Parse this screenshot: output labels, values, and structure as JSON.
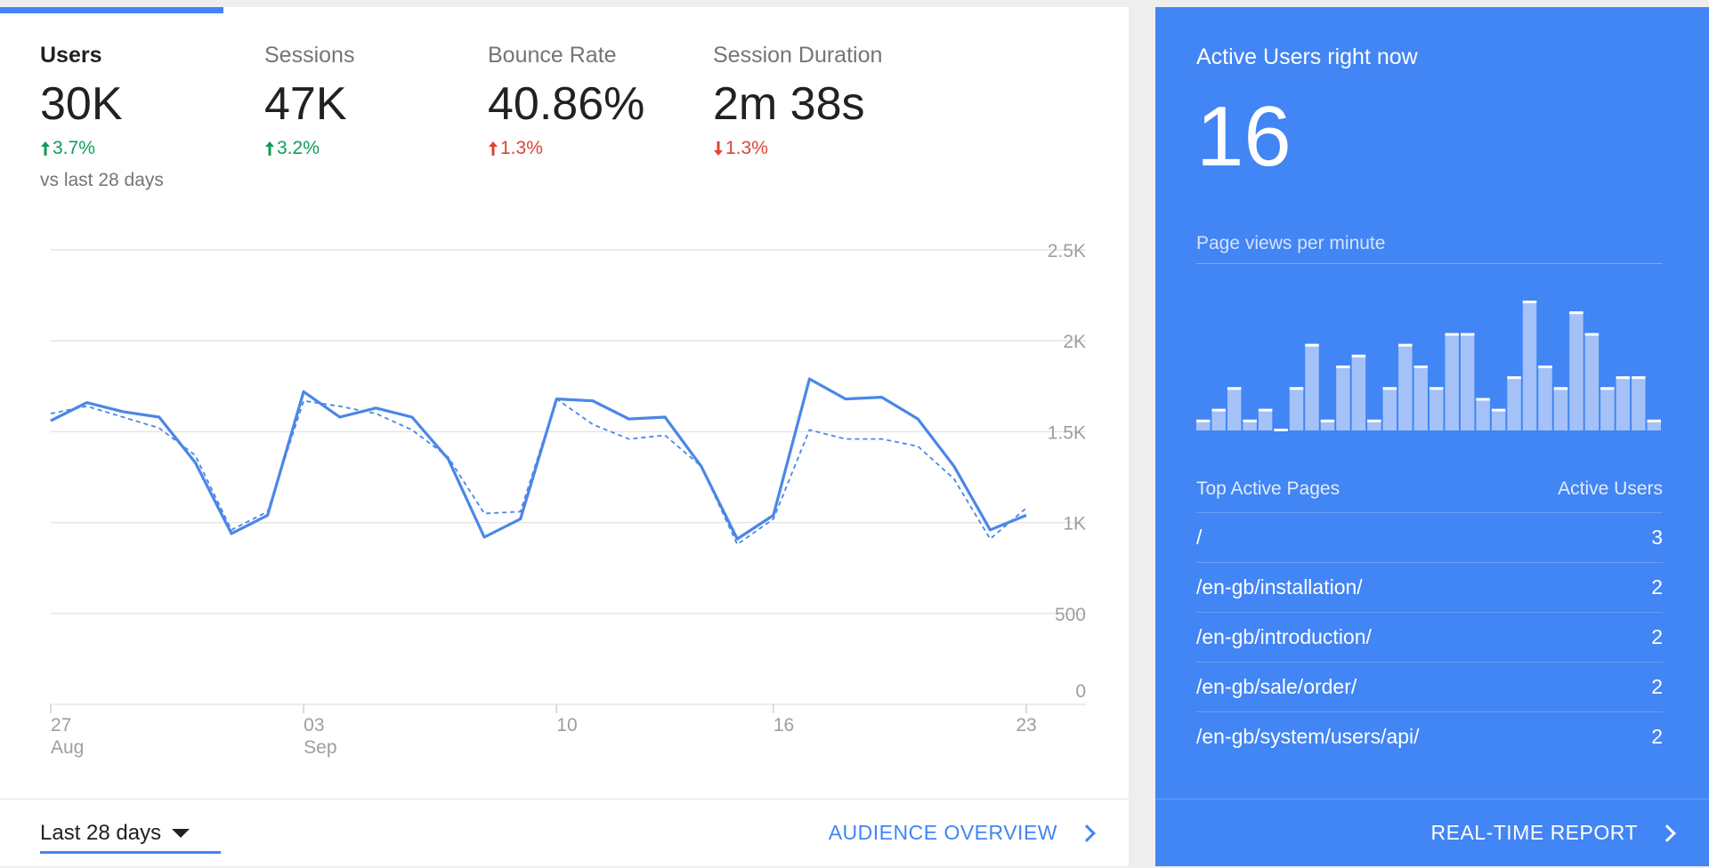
{
  "metrics": [
    {
      "label": "Users",
      "value": "30K",
      "delta": "3.7%",
      "direction": "up",
      "sentiment": "good",
      "sub": "vs last 28 days"
    },
    {
      "label": "Sessions",
      "value": "47K",
      "delta": "3.2%",
      "direction": "up",
      "sentiment": "good",
      "sub": ""
    },
    {
      "label": "Bounce Rate",
      "value": "40.86%",
      "delta": "1.3%",
      "direction": "up",
      "sentiment": "bad",
      "sub": ""
    },
    {
      "label": "Session Duration",
      "value": "2m 38s",
      "delta": "1.3%",
      "direction": "down",
      "sentiment": "bad",
      "sub": ""
    }
  ],
  "chart_data": {
    "type": "line",
    "x_ticks": [
      {
        "index": 0,
        "line1": "27",
        "line2": "Aug"
      },
      {
        "index": 7,
        "line1": "03",
        "line2": "Sep"
      },
      {
        "index": 14,
        "line1": "10",
        "line2": ""
      },
      {
        "index": 20,
        "line1": "16",
        "line2": ""
      },
      {
        "index": 27,
        "line1": "23",
        "line2": ""
      }
    ],
    "y_ticks": [
      0,
      500,
      1000,
      1500,
      2000,
      2500
    ],
    "y_tick_labels": [
      "0",
      "500",
      "1K",
      "1.5K",
      "2K",
      "2.5K"
    ],
    "ylim": [
      0,
      2500
    ],
    "series": [
      {
        "values": [
          1560,
          1660,
          1610,
          1580,
          1330,
          940,
          1040,
          1720,
          1580,
          1630,
          1580,
          1350,
          920,
          1020,
          1680,
          1670,
          1570,
          1580,
          1310,
          910,
          1040,
          1790,
          1680,
          1690,
          1570,
          1310,
          960,
          1040
        ],
        "style": "solid",
        "color": "#4a86e8"
      },
      {
        "values": [
          1600,
          1640,
          1580,
          1520,
          1370,
          960,
          1060,
          1670,
          1640,
          1600,
          1510,
          1360,
          1050,
          1060,
          1680,
          1540,
          1460,
          1480,
          1310,
          880,
          1020,
          1510,
          1460,
          1460,
          1420,
          1240,
          910,
          1080
        ],
        "style": "dashed",
        "color": "#4a86e8"
      }
    ],
    "grid": true,
    "y_axis_position": "right"
  },
  "footer": {
    "range_label": "Last 28 days",
    "audience_link": "AUDIENCE OVERVIEW"
  },
  "realtime": {
    "title": "Active Users right now",
    "count": "16",
    "pageviews_label": "Page views per minute",
    "pageviews": [
      1,
      2,
      4,
      1,
      2,
      0,
      4,
      8,
      1,
      6,
      7,
      1,
      4,
      8,
      6,
      4,
      9,
      9,
      3,
      2,
      5,
      12,
      6,
      4,
      11,
      9,
      4,
      5,
      5,
      1
    ],
    "pages_header": "Top Active Pages",
    "users_header": "Active Users",
    "pages": [
      {
        "path": "/",
        "users": "3"
      },
      {
        "path": "/en-gb/installation/",
        "users": "2"
      },
      {
        "path": "/en-gb/introduction/",
        "users": "2"
      },
      {
        "path": "/en-gb/sale/order/",
        "users": "2"
      },
      {
        "path": "/en-gb/system/users/api/",
        "users": "2"
      }
    ],
    "report_link": "REAL-TIME REPORT"
  },
  "colors": {
    "accent": "#4285f4",
    "good": "#0f9d58",
    "bad": "#db4437"
  }
}
